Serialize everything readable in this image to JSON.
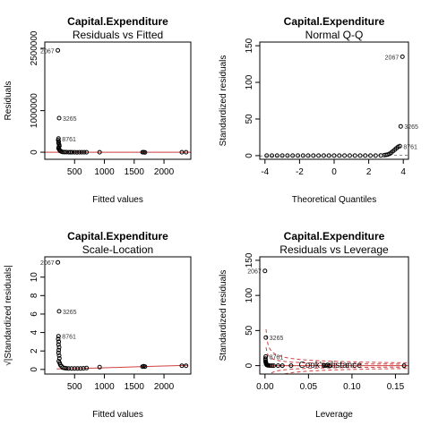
{
  "chart_data": [
    {
      "type": "scatter",
      "title": "Capital.Expenditure",
      "subtitle": "Residuals vs Fitted",
      "xlabel": "Fitted values",
      "ylabel": "Residuals",
      "xlim": [
        0,
        2450
      ],
      "ylim": [
        -170000,
        2650000
      ],
      "xticks": [
        500,
        1000,
        1500,
        2000
      ],
      "xtick_labels": [
        "500",
        "1000",
        "1500",
        "2000"
      ],
      "yticks": [
        0,
        1000000,
        2500000
      ],
      "ytick_labels": [
        "0",
        "1000000",
        "2500000"
      ],
      "refline": {
        "y": 0,
        "style": "dotted",
        "color": "#b0b0b0"
      },
      "smooth_color": "#d04040",
      "points": [
        [
          220,
          2450000
        ],
        [
          240,
          820000
        ],
        [
          230,
          330000
        ],
        [
          225,
          290000
        ],
        [
          235,
          255000
        ],
        [
          230,
          220000
        ],
        [
          240,
          185000
        ],
        [
          245,
          150000
        ],
        [
          235,
          120000
        ],
        [
          230,
          95000
        ],
        [
          240,
          70000
        ],
        [
          250,
          50000
        ],
        [
          260,
          30000
        ],
        [
          280,
          15000
        ],
        [
          300,
          5000
        ],
        [
          330,
          3000
        ],
        [
          360,
          2000
        ],
        [
          400,
          1000
        ],
        [
          430,
          0
        ],
        [
          460,
          0
        ],
        [
          500,
          0
        ],
        [
          540,
          -2000
        ],
        [
          580,
          0
        ],
        [
          620,
          0
        ],
        [
          660,
          0
        ],
        [
          700,
          0
        ],
        [
          920,
          0
        ],
        [
          1640,
          0
        ],
        [
          1660,
          0
        ],
        [
          1680,
          -5000
        ],
        [
          2300,
          0
        ],
        [
          2370,
          0
        ]
      ],
      "labels": [
        {
          "text": "2067",
          "x": 220,
          "y": 2450000,
          "side": "left"
        },
        {
          "text": "3265",
          "x": 240,
          "y": 820000,
          "side": "right"
        },
        {
          "text": "8761",
          "x": 230,
          "y": 330000,
          "side": "right"
        }
      ]
    },
    {
      "type": "scatter",
      "title": "Capital.Expenditure",
      "subtitle": "Normal Q-Q",
      "xlabel": "Theoretical Quantiles",
      "ylabel": "Standardized residuals",
      "xlim": [
        -4.3,
        4.3
      ],
      "ylim": [
        -5,
        155
      ],
      "xticks": [
        -4,
        -2,
        0,
        2,
        4
      ],
      "xtick_labels": [
        "-4",
        "-2",
        "0",
        "2",
        "4"
      ],
      "yticks": [
        0,
        50,
        100,
        150
      ],
      "ytick_labels": [
        "0",
        "50",
        "100",
        "150"
      ],
      "refline": {
        "type": "qqline",
        "style": "dashed",
        "color": "#888888"
      },
      "points": [
        [
          -3.9,
          0.0
        ],
        [
          -3.6,
          0.0
        ],
        [
          -3.3,
          0.0
        ],
        [
          -3.0,
          0.0
        ],
        [
          -2.7,
          0.0
        ],
        [
          -2.4,
          0.0
        ],
        [
          -2.1,
          0.0
        ],
        [
          -1.8,
          0.0
        ],
        [
          -1.5,
          0.0
        ],
        [
          -1.2,
          0.0
        ],
        [
          -0.9,
          0.0
        ],
        [
          -0.6,
          0.0
        ],
        [
          -0.3,
          0.0
        ],
        [
          0.0,
          0.0
        ],
        [
          0.3,
          0.0
        ],
        [
          0.6,
          0.0
        ],
        [
          0.9,
          0.0
        ],
        [
          1.2,
          0.0
        ],
        [
          1.5,
          0.0
        ],
        [
          1.8,
          0.0
        ],
        [
          2.1,
          0.0
        ],
        [
          2.4,
          0.0
        ],
        [
          2.7,
          0.3
        ],
        [
          2.9,
          0.6
        ],
        [
          3.0,
          1.0
        ],
        [
          3.1,
          1.5
        ],
        [
          3.2,
          2.5
        ],
        [
          3.3,
          4.0
        ],
        [
          3.4,
          6.0
        ],
        [
          3.5,
          8.0
        ],
        [
          3.6,
          10.0
        ],
        [
          3.7,
          12.0
        ],
        [
          3.8,
          13.0
        ],
        [
          3.85,
          40.0
        ],
        [
          3.95,
          135.0
        ]
      ],
      "labels": [
        {
          "text": "2067",
          "x": 3.95,
          "y": 135.0,
          "side": "left"
        },
        {
          "text": "3265",
          "x": 3.85,
          "y": 40.0,
          "side": "right"
        },
        {
          "text": "8761",
          "x": 3.8,
          "y": 13.0,
          "side": "right"
        }
      ]
    },
    {
      "type": "scatter",
      "title": "Capital.Expenditure",
      "subtitle": "Scale-Location",
      "xlabel": "Fitted values",
      "ylabel": "√|Standardized residuals|",
      "xlim": [
        0,
        2450
      ],
      "ylim": [
        -0.5,
        12.2
      ],
      "xticks": [
        500,
        1000,
        1500,
        2000
      ],
      "xtick_labels": [
        "500",
        "1000",
        "1500",
        "2000"
      ],
      "yticks": [
        0,
        2,
        4,
        6,
        8,
        10
      ],
      "ytick_labels": [
        "0",
        "2",
        "4",
        "6",
        "8",
        "10"
      ],
      "smooth_color": "#d04040",
      "smooth": [
        [
          200,
          0.05
        ],
        [
          500,
          0.1
        ],
        [
          900,
          0.15
        ],
        [
          1600,
          0.3
        ],
        [
          2400,
          0.45
        ]
      ],
      "points": [
        [
          220,
          11.6
        ],
        [
          240,
          6.3
        ],
        [
          230,
          3.6
        ],
        [
          225,
          3.3
        ],
        [
          235,
          3.0
        ],
        [
          230,
          2.7
        ],
        [
          240,
          2.4
        ],
        [
          235,
          2.1
        ],
        [
          230,
          1.8
        ],
        [
          240,
          1.5
        ],
        [
          245,
          1.2
        ],
        [
          235,
          0.9
        ],
        [
          250,
          0.7
        ],
        [
          260,
          0.5
        ],
        [
          280,
          0.35
        ],
        [
          300,
          0.2
        ],
        [
          330,
          0.15
        ],
        [
          360,
          0.12
        ],
        [
          400,
          0.1
        ],
        [
          450,
          0.1
        ],
        [
          500,
          0.1
        ],
        [
          550,
          0.1
        ],
        [
          600,
          0.1
        ],
        [
          650,
          0.12
        ],
        [
          700,
          0.15
        ],
        [
          920,
          0.25
        ],
        [
          1640,
          0.3
        ],
        [
          1660,
          0.35
        ],
        [
          1680,
          0.3
        ],
        [
          2300,
          0.4
        ],
        [
          2370,
          0.4
        ]
      ],
      "labels": [
        {
          "text": "2067",
          "x": 220,
          "y": 11.6,
          "side": "left"
        },
        {
          "text": "3265",
          "x": 240,
          "y": 6.3,
          "side": "right"
        },
        {
          "text": "8761",
          "x": 230,
          "y": 3.6,
          "side": "right"
        }
      ]
    },
    {
      "type": "scatter",
      "title": "Capital.Expenditure",
      "subtitle": "Residuals vs Leverage",
      "xlabel": "Leverage",
      "ylabel": "Standardized residuals",
      "xlim": [
        -0.006,
        0.165
      ],
      "ylim": [
        -12,
        155
      ],
      "xticks": [
        0.0,
        0.05,
        0.1,
        0.15
      ],
      "xtick_labels": [
        "0.00",
        "0.05",
        "0.10",
        "0.15"
      ],
      "yticks": [
        0,
        50,
        100,
        150
      ],
      "ytick_labels": [
        "0",
        "50",
        "100",
        "150"
      ],
      "refline": {
        "y": 0,
        "style": "dotted",
        "color": "#b0b0b0"
      },
      "cooks_label": "Cook's distance",
      "smooth_color": "#d04040",
      "points": [
        [
          0.0,
          135.0
        ],
        [
          0.001,
          40.0
        ],
        [
          0.0008,
          13.0
        ],
        [
          0.0005,
          10.0
        ],
        [
          0.0006,
          8.0
        ],
        [
          0.0007,
          6.0
        ],
        [
          0.0009,
          5.0
        ],
        [
          0.001,
          4.0
        ],
        [
          0.0012,
          3.0
        ],
        [
          0.0015,
          2.0
        ],
        [
          0.002,
          1.0
        ],
        [
          0.003,
          0.5
        ],
        [
          0.004,
          0.2
        ],
        [
          0.006,
          0.0
        ],
        [
          0.008,
          0.0
        ],
        [
          0.01,
          0.0
        ],
        [
          0.015,
          0.0
        ],
        [
          0.02,
          0.0
        ],
        [
          0.03,
          0.0
        ],
        [
          0.068,
          0.5
        ],
        [
          0.07,
          0.0
        ],
        [
          0.072,
          1.0
        ],
        [
          0.074,
          -0.5
        ],
        [
          0.16,
          0.0
        ]
      ],
      "labels": [
        {
          "text": "2067",
          "x": 0.0,
          "y": 135.0,
          "side": "left"
        },
        {
          "text": "3265",
          "x": 0.001,
          "y": 40.0,
          "side": "right"
        },
        {
          "text": "8761",
          "x": 0.0008,
          "y": 13.0,
          "side": "right"
        }
      ]
    }
  ]
}
